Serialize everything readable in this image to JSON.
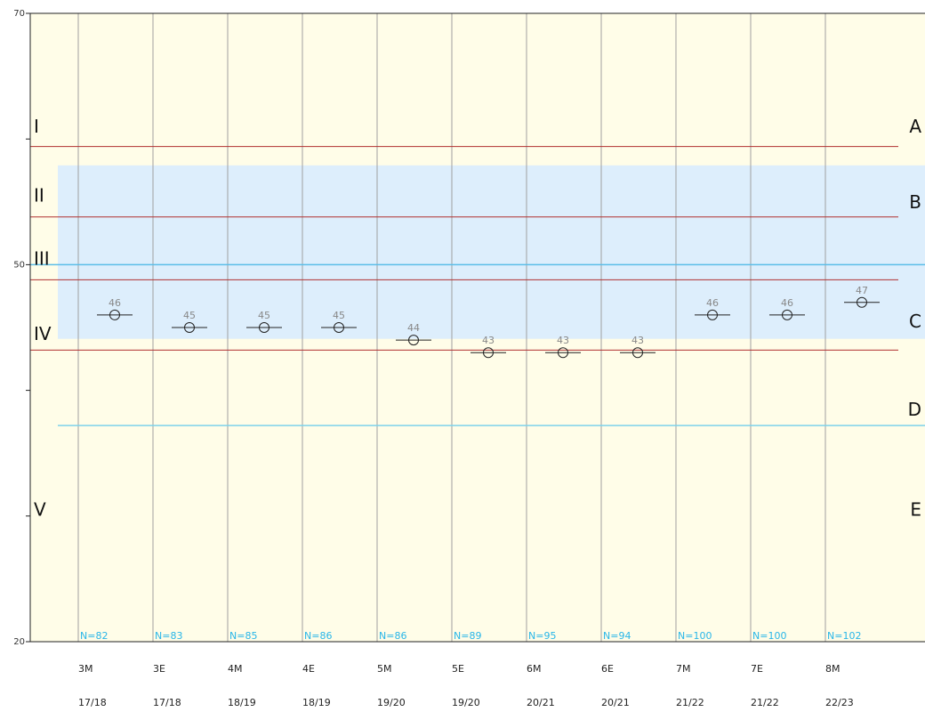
{
  "chart_data": {
    "type": "scatter",
    "ylim": [
      20,
      70
    ],
    "y_ticks": [
      20,
      30,
      40,
      50,
      60,
      70
    ],
    "y_tick_labels": [
      "20",
      "",
      "",
      "50",
      "",
      "70"
    ],
    "grid": "vertical",
    "categories": [
      "3M",
      "3E",
      "4M",
      "4E",
      "5M",
      "5E",
      "6M",
      "6E",
      "7M",
      "7E",
      "8M"
    ],
    "years": [
      "17/18",
      "17/18",
      "18/19",
      "18/19",
      "19/20",
      "19/20",
      "20/21",
      "20/21",
      "21/22",
      "21/22",
      "22/23"
    ],
    "values": [
      46,
      45,
      45,
      45,
      44,
      43,
      43,
      43,
      46,
      46,
      47
    ],
    "n_labels": [
      "N=82",
      "N=83",
      "N=85",
      "N=86",
      "N=86",
      "N=89",
      "N=95",
      "N=94",
      "N=100",
      "N=100",
      "N=102"
    ],
    "left_bands": [
      {
        "label": "I",
        "y": 61
      },
      {
        "label": "II",
        "y": 55.5
      },
      {
        "label": "III",
        "y": 50.5
      },
      {
        "label": "IV",
        "y": 44.5
      },
      {
        "label": "V",
        "y": 30.5
      }
    ],
    "right_bands": [
      {
        "label": "A",
        "y": 61
      },
      {
        "label": "B",
        "y": 55
      },
      {
        "label": "C",
        "y": 45.5
      },
      {
        "label": "D",
        "y": 38.5
      },
      {
        "label": "E",
        "y": 30.5
      }
    ],
    "boundary_lines": [
      59.4,
      53.8,
      48.8,
      43.2
    ],
    "shaded_band": [
      44.1,
      57.9
    ],
    "national_average": 50,
    "lower_reference": 37.2,
    "colors": {
      "background": "#fffde8",
      "band_fill": "#ddeefc",
      "boundary": "#b03030",
      "average": "#5bbde8",
      "lower_reference": "#7ed3ea",
      "grid": "#a0a0a0",
      "n_label": "#29b6e8",
      "marker": "#222222"
    }
  }
}
